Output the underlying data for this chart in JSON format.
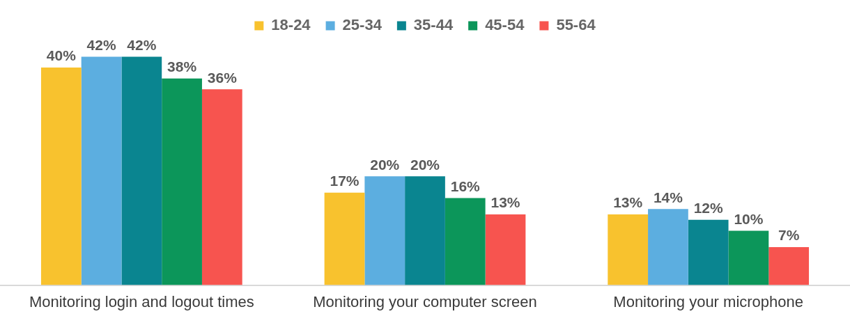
{
  "chart_data": {
    "type": "bar",
    "categories": [
      "Monitoring login and logout times",
      "Monitoring your computer screen",
      "Monitoring your microphone"
    ],
    "series": [
      {
        "name": "18-24",
        "color": "#f8c22e",
        "values": [
          40,
          17,
          13
        ],
        "value_labels": [
          "40%",
          "17%",
          "13%"
        ]
      },
      {
        "name": "25-34",
        "color": "#5caee0",
        "values": [
          42,
          20,
          14
        ],
        "value_labels": [
          "42%",
          "20%",
          "14%"
        ]
      },
      {
        "name": "35-44",
        "color": "#0a8590",
        "values": [
          42,
          20,
          12
        ],
        "value_labels": [
          "42%",
          "20%",
          "12%"
        ]
      },
      {
        "name": "45-54",
        "color": "#0c965a",
        "values": [
          38,
          16,
          10
        ],
        "value_labels": [
          "38%",
          "16%",
          "10%"
        ]
      },
      {
        "name": "55-64",
        "color": "#f7544f",
        "values": [
          36,
          13,
          7
        ],
        "value_labels": [
          "36%",
          "13%",
          "7%"
        ]
      }
    ],
    "legend": "top",
    "grid": false
  }
}
